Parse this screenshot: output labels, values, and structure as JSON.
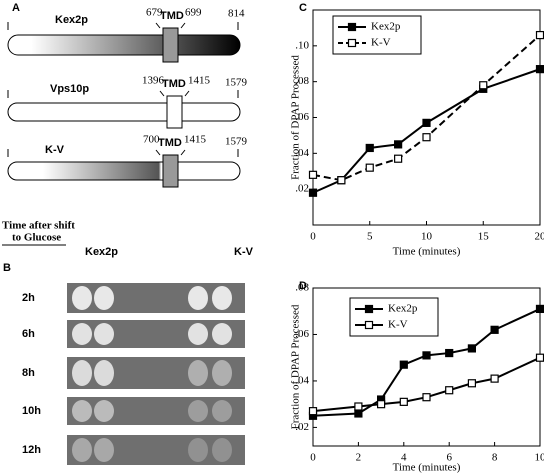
{
  "panel_a": {
    "letter": "A",
    "constructs": [
      {
        "name": "Kex2p",
        "tmd_start": "679",
        "tmd": "TMD",
        "tmd_end": "699",
        "length": "814"
      },
      {
        "name": "Vps10p",
        "tmd_start": "1396",
        "tmd": "TMD",
        "tmd_end": "1415",
        "length": "1579"
      },
      {
        "name": "K-V",
        "tmd_start": "700",
        "tmd": "TMD",
        "tmd_end": "1415",
        "length": "1579"
      }
    ]
  },
  "panel_b": {
    "letter": "B",
    "heading": [
      "Time after shift",
      "to Glucose"
    ],
    "columns": [
      "Kex2p",
      "K-V"
    ],
    "rows": [
      "2h",
      "6h",
      "8h",
      "10h",
      "12h"
    ]
  },
  "chart_data": [
    {
      "type": "line",
      "panel": "C",
      "x_label": "Time (minutes)",
      "y_label": "Fraction of DPAP Processed",
      "xlim": [
        0,
        20
      ],
      "xticks": [
        0,
        5,
        10,
        15,
        20
      ],
      "ylim": [
        0,
        0.12
      ],
      "yticks": [
        {
          "value": 0.02,
          "label": ".02"
        },
        {
          "value": 0.04,
          "label": ".04"
        },
        {
          "value": 0.06,
          "label": ".06"
        },
        {
          "value": 0.08,
          "label": ".08"
        },
        {
          "value": 0.1,
          "label": ".10"
        }
      ],
      "legend": "upper left",
      "series": [
        {
          "name": "Kex2p",
          "color": "#000000",
          "line_style": "solid",
          "marker_fill": "filled",
          "x": [
            0,
            2.5,
            5,
            7.5,
            10,
            15,
            20
          ],
          "values": [
            0.018,
            0.025,
            0.043,
            0.045,
            0.057,
            0.076,
            0.087
          ]
        },
        {
          "name": "K-V",
          "color": "#000000",
          "line_style": "dashed",
          "marker_fill": "open",
          "x": [
            0,
            2.5,
            5,
            7.5,
            10,
            15,
            20
          ],
          "values": [
            0.028,
            0.025,
            0.032,
            0.037,
            0.049,
            0.078,
            0.106
          ]
        }
      ]
    },
    {
      "type": "line",
      "panel": "D",
      "x_label": "Time (minutes)",
      "y_label": "Fraction of DPAP Processed",
      "xlim": [
        0,
        10
      ],
      "xticks": [
        0,
        2,
        4,
        6,
        8,
        10
      ],
      "ylim": [
        0.012,
        0.08
      ],
      "yticks": [
        {
          "value": 0.02,
          "label": ".02"
        },
        {
          "value": 0.04,
          "label": ".04"
        },
        {
          "value": 0.06,
          "label": ".06"
        },
        {
          "value": 0.08,
          "label": ".08"
        }
      ],
      "legend": "upper left",
      "series": [
        {
          "name": "Kex2p",
          "color": "#000000",
          "line_style": "solid",
          "marker_fill": "filled",
          "x": [
            0,
            2,
            3,
            4,
            5,
            6,
            7,
            8,
            10
          ],
          "values": [
            0.025,
            0.026,
            0.032,
            0.047,
            0.051,
            0.052,
            0.054,
            0.062,
            0.071
          ]
        },
        {
          "name": "K-V",
          "color": "#000000",
          "line_style": "solid",
          "marker_fill": "open",
          "x": [
            0,
            2,
            3,
            4,
            5,
            6,
            7,
            8,
            10
          ],
          "values": [
            0.027,
            0.029,
            0.03,
            0.031,
            0.033,
            0.036,
            0.039,
            0.041,
            0.05
          ]
        }
      ]
    }
  ]
}
